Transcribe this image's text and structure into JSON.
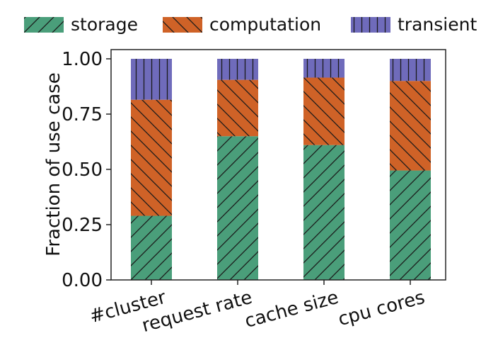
{
  "chart_data": {
    "type": "bar",
    "stacked": true,
    "categories": [
      "#cluster",
      "request rate",
      "cache size",
      "cpu cores"
    ],
    "series": [
      {
        "name": "storage",
        "values": [
          0.29,
          0.65,
          0.61,
          0.495
        ],
        "color": "#4a9e7a",
        "hatch": "forward-diagonal"
      },
      {
        "name": "computation",
        "values": [
          0.525,
          0.255,
          0.305,
          0.405
        ],
        "color": "#cf6227",
        "hatch": "back-diagonal"
      },
      {
        "name": "transient",
        "values": [
          0.185,
          0.095,
          0.085,
          0.1
        ],
        "color": "#6f6bbb",
        "hatch": "vertical"
      }
    ],
    "ylabel": "Fraction of use case",
    "xlabel": "",
    "title": "",
    "ylim": [
      0,
      1.0
    ],
    "yticks": [
      "0.00",
      "0.25",
      "0.50",
      "0.75",
      "1.00"
    ],
    "ytick_values": [
      0,
      0.25,
      0.5,
      0.75,
      1.0
    ],
    "legend_position": "top",
    "grid": false,
    "xtick_rotation": "slanted"
  }
}
